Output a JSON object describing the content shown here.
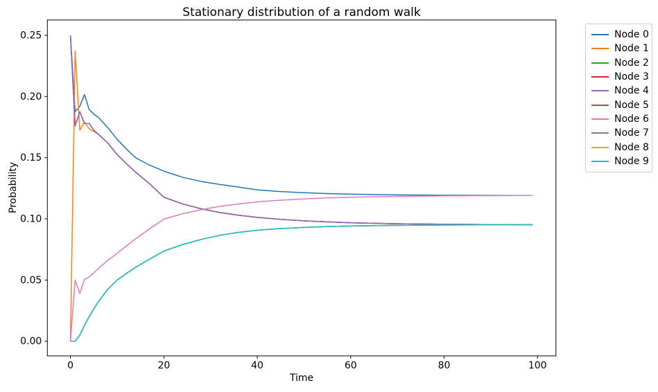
{
  "title": "Stationary distribution of a random walk",
  "axes": {
    "xlabel": "Time",
    "ylabel": "Probability",
    "x_tick_labels": [
      "0",
      "20",
      "40",
      "60",
      "80",
      "100"
    ],
    "x_tick_values": [
      0,
      20,
      40,
      60,
      80,
      100
    ],
    "y_tick_labels": [
      "0.00",
      "0.05",
      "0.10",
      "0.15",
      "0.20",
      "0.25"
    ],
    "y_tick_values": [
      0,
      0.05,
      0.1,
      0.15,
      0.2,
      0.25
    ]
  },
  "legend": {
    "position": "outside-right",
    "entries": [
      {
        "label": "Node 0",
        "color": "#1f77b4"
      },
      {
        "label": "Node 1",
        "color": "#ff7f0e"
      },
      {
        "label": "Node 2",
        "color": "#2ca02c"
      },
      {
        "label": "Node 3",
        "color": "#d62728"
      },
      {
        "label": "Node 4",
        "color": "#9467bd"
      },
      {
        "label": "Node 5",
        "color": "#8c564b"
      },
      {
        "label": "Node 6",
        "color": "#e377c2"
      },
      {
        "label": "Node 7",
        "color": "#7f7f7f"
      },
      {
        "label": "Node 8",
        "color": "#bcbd22"
      },
      {
        "label": "Node 9",
        "color": "#17becf"
      }
    ]
  },
  "chart_data": {
    "type": "line",
    "title": "Stationary distribution of a random walk",
    "xlabel": "Time",
    "ylabel": "Probability",
    "xlim": [
      -4.95,
      103.95
    ],
    "ylim": [
      -0.012,
      0.2625
    ],
    "x_ticks": [
      0,
      20,
      40,
      60,
      80,
      100
    ],
    "y_ticks": [
      0,
      0.05,
      0.1,
      0.15,
      0.2,
      0.25
    ],
    "grid": false,
    "legend_position": "outside right",
    "t_samples": [
      0,
      1,
      2,
      3,
      4,
      5,
      6,
      8,
      10,
      12,
      14,
      17,
      20,
      24,
      28,
      32,
      36,
      40,
      45,
      50,
      55,
      60,
      70,
      80,
      90,
      99
    ],
    "series": [
      {
        "name": "Node 0",
        "color": "#1f77b4",
        "values": [
          0.25,
          0.1875,
          0.192,
          0.2016,
          0.1894,
          0.1856,
          0.1828,
          0.1745,
          0.165,
          0.157,
          0.1498,
          0.1438,
          0.139,
          0.134,
          0.1306,
          0.1281,
          0.126,
          0.1237,
          0.1223,
          0.1214,
          0.1207,
          0.1202,
          0.1196,
          0.1193,
          0.1192,
          0.1191
        ]
      },
      {
        "name": "Node 1",
        "color": "#ff7f0e",
        "values": [
          0.0,
          0.237,
          0.1725,
          0.179,
          0.1735,
          0.1715,
          0.169,
          0.162,
          0.1525,
          0.145,
          0.138,
          0.1285,
          0.1177,
          0.1122,
          0.1082,
          0.1052,
          0.103,
          0.1012,
          0.0996,
          0.0984,
          0.0975,
          0.0968,
          0.096,
          0.0956,
          0.0953,
          0.0952
        ]
      },
      {
        "name": "Node 2",
        "color": "#2ca02c",
        "values": [
          0.25,
          0.176,
          0.1875,
          0.178,
          0.178,
          0.1725,
          0.169,
          0.162,
          0.1525,
          0.145,
          0.138,
          0.1285,
          0.1177,
          0.1122,
          0.1082,
          0.1052,
          0.103,
          0.1012,
          0.0996,
          0.0984,
          0.0975,
          0.0968,
          0.096,
          0.0956,
          0.0953,
          0.0952
        ]
      },
      {
        "name": "Node 3",
        "color": "#d62728",
        "values": [
          0.25,
          0.176,
          0.1875,
          0.178,
          0.178,
          0.1725,
          0.169,
          0.162,
          0.1525,
          0.145,
          0.138,
          0.1285,
          0.1177,
          0.1122,
          0.1082,
          0.1052,
          0.103,
          0.1012,
          0.0996,
          0.0984,
          0.0975,
          0.0968,
          0.096,
          0.0956,
          0.0953,
          0.0952
        ]
      },
      {
        "name": "Node 4",
        "color": "#9467bd",
        "values": [
          0.25,
          0.176,
          0.1875,
          0.178,
          0.178,
          0.1725,
          0.169,
          0.162,
          0.1525,
          0.145,
          0.138,
          0.1285,
          0.1177,
          0.1122,
          0.1082,
          0.1052,
          0.103,
          0.1012,
          0.0996,
          0.0984,
          0.0975,
          0.0968,
          0.096,
          0.0956,
          0.0953,
          0.0952
        ]
      },
      {
        "name": "Node 5",
        "color": "#8c564b",
        "values": [
          0.0,
          0.0,
          0.005,
          0.013,
          0.02,
          0.0265,
          0.0325,
          0.0425,
          0.05,
          0.0555,
          0.0605,
          0.0672,
          0.0737,
          0.079,
          0.0832,
          0.0866,
          0.089,
          0.0907,
          0.0921,
          0.093,
          0.0937,
          0.0942,
          0.0947,
          0.095,
          0.0951,
          0.0952
        ]
      },
      {
        "name": "Node 6",
        "color": "#e377c2",
        "values": [
          0.0,
          0.05,
          0.039,
          0.0505,
          0.0525,
          0.056,
          0.0595,
          0.0662,
          0.0718,
          0.078,
          0.0838,
          0.092,
          0.0998,
          0.1042,
          0.1075,
          0.1102,
          0.1122,
          0.1139,
          0.1153,
          0.1163,
          0.1171,
          0.1177,
          0.1184,
          0.1188,
          0.119,
          0.1191
        ]
      },
      {
        "name": "Node 7",
        "color": "#7f7f7f",
        "values": [
          0.0,
          0.0,
          0.005,
          0.013,
          0.02,
          0.0265,
          0.0325,
          0.0425,
          0.05,
          0.0555,
          0.0605,
          0.0672,
          0.0737,
          0.079,
          0.0832,
          0.0866,
          0.089,
          0.0907,
          0.0921,
          0.093,
          0.0937,
          0.0942,
          0.0947,
          0.095,
          0.0951,
          0.0952
        ]
      },
      {
        "name": "Node 8",
        "color": "#bcbd22",
        "values": [
          0.0,
          0.0,
          0.005,
          0.013,
          0.02,
          0.0265,
          0.0325,
          0.0425,
          0.05,
          0.0555,
          0.0605,
          0.0672,
          0.0737,
          0.079,
          0.0832,
          0.0866,
          0.089,
          0.0907,
          0.0921,
          0.093,
          0.0937,
          0.0942,
          0.0947,
          0.095,
          0.0951,
          0.0952
        ]
      },
      {
        "name": "Node 9",
        "color": "#17becf",
        "values": [
          0.0,
          0.0,
          0.005,
          0.013,
          0.02,
          0.0265,
          0.0325,
          0.0425,
          0.05,
          0.0555,
          0.0605,
          0.0672,
          0.0737,
          0.079,
          0.0832,
          0.0866,
          0.089,
          0.0907,
          0.0921,
          0.093,
          0.0937,
          0.0942,
          0.0947,
          0.095,
          0.0951,
          0.0952
        ]
      }
    ]
  }
}
